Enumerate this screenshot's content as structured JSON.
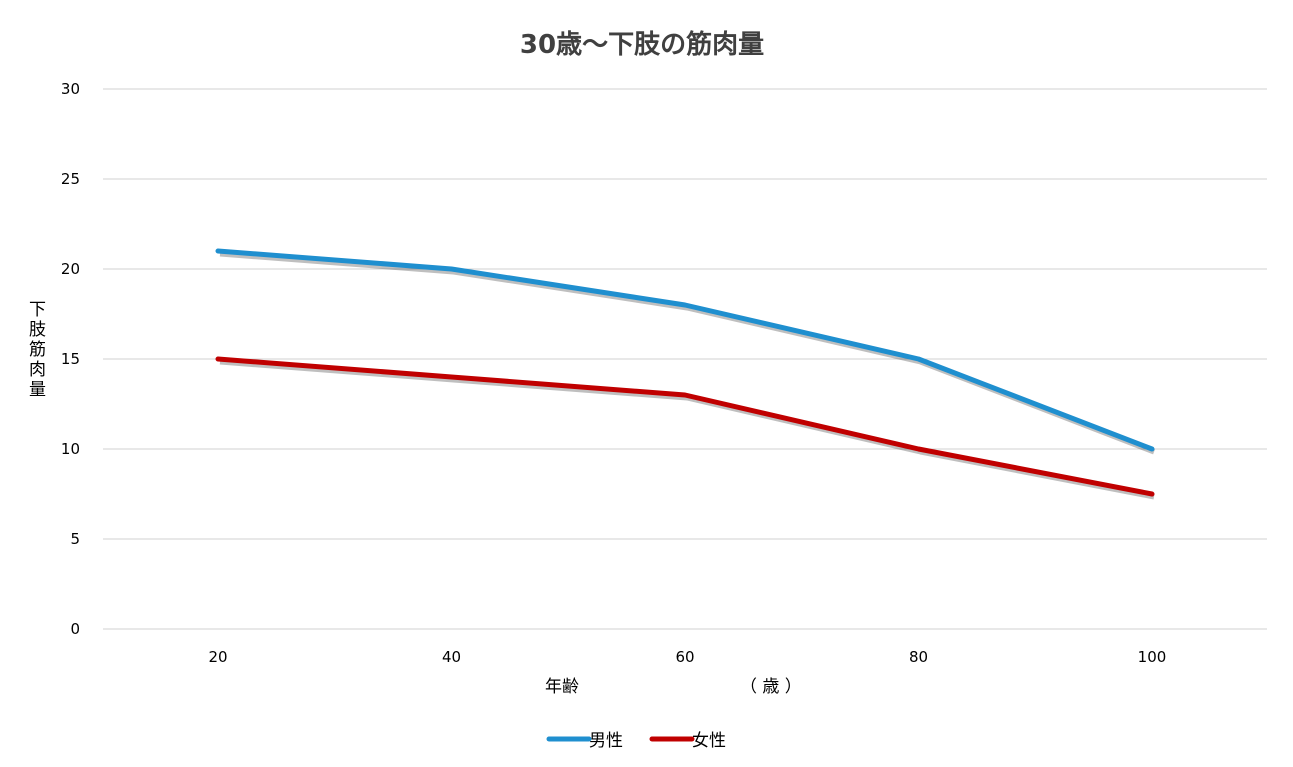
{
  "chart_data": {
    "type": "line",
    "title": "30歳～下肢の筋肉量",
    "xlabel": "年齢",
    "xlabel_unit": "（ 歳 ）",
    "ylabel": "下肢筋肉量",
    "x": [
      20,
      40,
      60,
      80,
      100
    ],
    "x_tick_labels": [
      "20",
      "40",
      "60",
      "80",
      "100"
    ],
    "ylim": [
      0,
      30
    ],
    "y_ticks": [
      0,
      5,
      10,
      15,
      20,
      25,
      30
    ],
    "y_tick_labels": [
      "0",
      "5",
      "10",
      "15",
      "20",
      "25",
      "30"
    ],
    "grid": true,
    "legend_position": "bottom",
    "series": [
      {
        "name": "男性",
        "color": "#1F8FCF",
        "values": [
          21,
          20,
          18,
          15,
          10
        ]
      },
      {
        "name": "女性",
        "color": "#C00000",
        "values": [
          15,
          14,
          13,
          10,
          7.5
        ]
      }
    ]
  }
}
